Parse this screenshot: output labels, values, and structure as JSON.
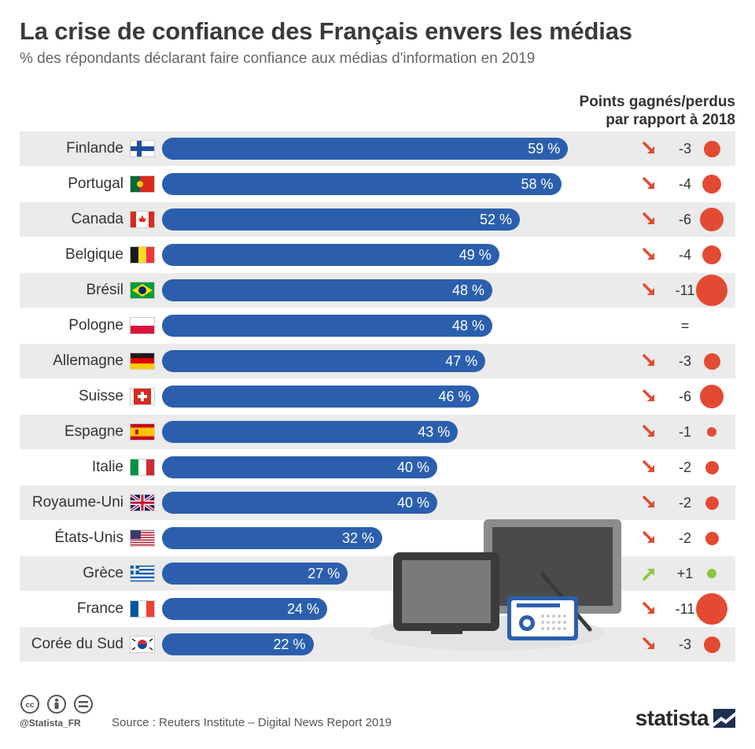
{
  "header": {
    "title": "La crise de confiance des Français envers les médias",
    "subtitle": "% des répondants déclarant faire confiance aux médias d'information en 2019",
    "change_col_line1": "Points gagnés/perdus",
    "change_col_line2": "par rapport à 2018"
  },
  "colors": {
    "bar": "#2b5fae",
    "loss": "#e34a33",
    "gain": "#8dc63f",
    "row_shade": "#ebebeb"
  },
  "chart_data": {
    "type": "bar",
    "orientation": "horizontal",
    "title": "La crise de confiance des Français envers les médias",
    "subtitle": "% des répondants déclarant faire confiance aux médias d'information en 2019",
    "categories": [
      "Finlande",
      "Portugal",
      "Canada",
      "Belgique",
      "Brésil",
      "Pologne",
      "Allemagne",
      "Suisse",
      "Espagne",
      "Italie",
      "Royaume-Uni",
      "États-Unis",
      "Grèce",
      "France",
      "Corée du Sud"
    ],
    "values": [
      59,
      58,
      52,
      49,
      48,
      48,
      47,
      46,
      43,
      40,
      40,
      32,
      27,
      24,
      22
    ],
    "value_labels": [
      "59 %",
      "58 %",
      "52 %",
      "49 %",
      "48 %",
      "48 %",
      "47 %",
      "46 %",
      "43 %",
      "40 %",
      "40 %",
      "32 %",
      "27 %",
      "24 %",
      "22 %"
    ],
    "change_vs_2018": [
      -3,
      -4,
      -6,
      -4,
      -11,
      0,
      -3,
      -6,
      -1,
      -2,
      -2,
      -2,
      1,
      -11,
      -3
    ],
    "change_labels": [
      "-3",
      "-4",
      "-6",
      "-4",
      "-11",
      "=",
      "-3",
      "-6",
      "-1",
      "-2",
      "-2",
      "-2",
      "+1",
      "-11",
      "-3"
    ],
    "flags": [
      "finland",
      "portugal",
      "canada",
      "belgium",
      "brazil",
      "poland",
      "germany",
      "switzerland",
      "spain",
      "italy",
      "uk",
      "usa",
      "greece",
      "france",
      "south-korea"
    ],
    "unit": "%",
    "xlim": [
      0,
      100
    ]
  },
  "footer": {
    "handle": "@Statista_FR",
    "source": "Source : Reuters Institute – Digital News Report 2019",
    "logo": "statista",
    "license_icons": [
      "cc-icon",
      "by-icon",
      "nd-icon"
    ]
  },
  "illustration": {
    "icons": [
      "tablet-icon",
      "monitor-icon",
      "radio-icon"
    ]
  }
}
